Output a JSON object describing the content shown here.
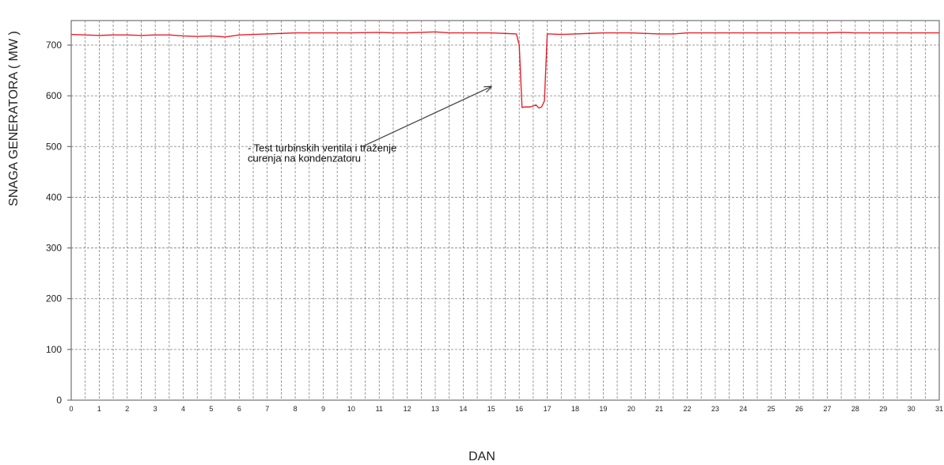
{
  "chart_data": {
    "type": "line",
    "xlabel": "DAN",
    "ylabel": "SNAGA GENERATORA ( MW )",
    "xlim": [
      0,
      31
    ],
    "ylim": [
      0,
      750
    ],
    "x_ticks": [
      "0",
      "1",
      "2",
      "3",
      "4",
      "5",
      "6",
      "7",
      "8",
      "9",
      "10",
      "11",
      "12",
      "13",
      "14",
      "15",
      "16",
      "17",
      "18",
      "19",
      "20",
      "21",
      "22",
      "23",
      "24",
      "25",
      "26",
      "27",
      "28",
      "29",
      "30",
      "31"
    ],
    "y_ticks": [
      "0",
      "100",
      "200",
      "300",
      "400",
      "500",
      "600",
      "700"
    ],
    "grid": true,
    "colors": {
      "line": "#e8202a",
      "grid": "#808080",
      "arrow": "#444444"
    },
    "annotation": {
      "lines": [
        "- Test turbinskih ventila  i traženje",
        "curenja  na kondenzatoru"
      ],
      "text_at": [
        6.3,
        490
      ],
      "arrow_from": [
        10.4,
        500
      ],
      "arrow_to": [
        15.0,
        618
      ]
    },
    "series": [
      {
        "x": [
          0,
          0.5,
          1,
          1.5,
          2,
          2.5,
          3,
          3.5,
          4,
          4.5,
          5,
          5.5,
          6,
          6.5,
          7,
          7.5,
          8,
          9,
          10,
          11,
          11.5,
          12,
          13,
          13.5,
          14,
          15,
          15.5,
          15.9,
          16.0,
          16.1,
          16.2,
          16.4,
          16.6,
          16.7,
          16.8,
          16.9,
          17.0,
          17.1,
          17.5,
          18,
          18.5,
          19,
          20,
          21,
          21.5,
          22,
          23,
          24,
          25,
          26,
          27,
          27.5,
          28,
          29,
          30,
          31
        ],
        "values": [
          721,
          720,
          719,
          720,
          720,
          719,
          720,
          720,
          718,
          717,
          718,
          716,
          720,
          721,
          722,
          723,
          724,
          724,
          724,
          725,
          724,
          724,
          726,
          724,
          724,
          724,
          723,
          722,
          700,
          577,
          578,
          578,
          582,
          576,
          578,
          590,
          722,
          722,
          721,
          722,
          723,
          724,
          724,
          722,
          722,
          724,
          724,
          724,
          724,
          724,
          724,
          725,
          724,
          724,
          724,
          724
        ]
      }
    ]
  }
}
